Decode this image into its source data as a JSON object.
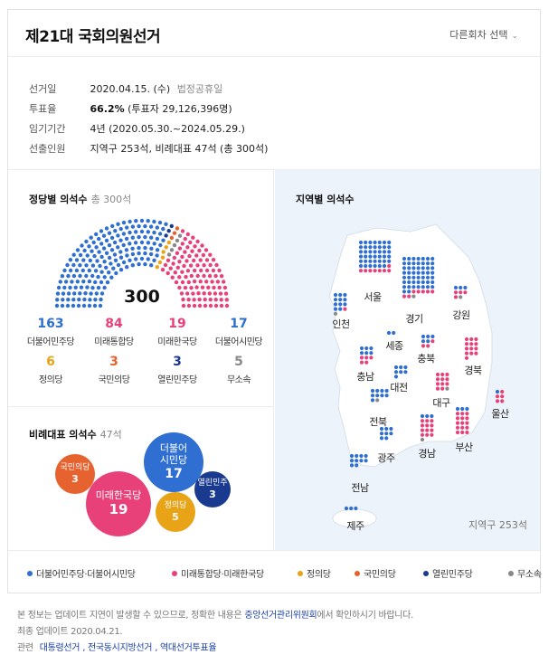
{
  "header": {
    "title": "제21대 국회의원선거",
    "selector_label": "다른회차 선택",
    "chevron_icon": "chevron-down-icon"
  },
  "info": {
    "rows": [
      {
        "key": "선거일",
        "value": "2020.04.15. (수)",
        "note": "법정공휴일"
      },
      {
        "key": "투표율",
        "value_bold": "66.2%",
        "value": "(투표자 29,126,396명)"
      },
      {
        "key": "임기기간",
        "value": "4년 (2020.05.30.~2024.05.29.)"
      },
      {
        "key": "선출인원",
        "value": "지역구 253석, 비례대표 47석 (총 300석)"
      }
    ]
  },
  "seats": {
    "title": "정당별 의석수",
    "subtitle": "총 300석",
    "total": "300",
    "parties": [
      {
        "count": "163",
        "label": "더불어민주당",
        "color": "#2f6fd1"
      },
      {
        "count": "84",
        "label": "미래통합당",
        "color": "#e8417a"
      },
      {
        "count": "19",
        "label": "미래한국당",
        "color": "#e8417a"
      },
      {
        "count": "17",
        "label": "더불어시민당",
        "color": "#2f6fd1"
      },
      {
        "count": "6",
        "label": "정의당",
        "color": "#e8a317"
      },
      {
        "count": "3",
        "label": "국민의당",
        "color": "#e6622e"
      },
      {
        "count": "3",
        "label": "열린민주당",
        "color": "#1a3a8f"
      },
      {
        "count": "5",
        "label": "무소속",
        "color": "#888888"
      }
    ]
  },
  "proportional": {
    "title": "비례대표 의석수",
    "subtitle": "47석",
    "bubbles": [
      {
        "name": "국민의당",
        "count": "3",
        "color": "#e6622e"
      },
      {
        "name": "미래한국당",
        "count": "19",
        "color": "#e8417a"
      },
      {
        "name": "더불어\n시민당",
        "count": "17",
        "color": "#2f6fd1"
      },
      {
        "name": "정의당",
        "count": "5",
        "color": "#e8a317"
      },
      {
        "name": "열린민주",
        "count": "3",
        "color": "#1a3a8f"
      }
    ]
  },
  "regions": {
    "title": "지역별 의석수",
    "footer": "지역구 253석",
    "items": [
      {
        "name": "서울",
        "blue": 41,
        "pink": 8,
        "gray": 0
      },
      {
        "name": "인천",
        "blue": 11,
        "pink": 1,
        "gray": 1
      },
      {
        "name": "경기",
        "blue": 51,
        "pink": 7,
        "gray": 1
      },
      {
        "name": "강원",
        "blue": 3,
        "pink": 4,
        "gray": 1
      },
      {
        "name": "세종",
        "blue": 2,
        "pink": 0,
        "gray": 0
      },
      {
        "name": "충북",
        "blue": 5,
        "pink": 3,
        "gray": 0
      },
      {
        "name": "충남",
        "blue": 6,
        "pink": 5,
        "gray": 0
      },
      {
        "name": "대전",
        "blue": 7,
        "pink": 0,
        "gray": 0
      },
      {
        "name": "경북",
        "blue": 0,
        "pink": 13,
        "gray": 0
      },
      {
        "name": "대구",
        "blue": 0,
        "pink": 11,
        "gray": 1
      },
      {
        "name": "전북",
        "blue": 9,
        "pink": 0,
        "gray": 1
      },
      {
        "name": "울산",
        "blue": 1,
        "pink": 5,
        "gray": 0
      },
      {
        "name": "광주",
        "blue": 8,
        "pink": 0,
        "gray": 0
      },
      {
        "name": "경남",
        "blue": 3,
        "pink": 12,
        "gray": 1
      },
      {
        "name": "부산",
        "blue": 3,
        "pink": 15,
        "gray": 0
      },
      {
        "name": "전남",
        "blue": 10,
        "pink": 0,
        "gray": 0
      },
      {
        "name": "제주",
        "blue": 3,
        "pink": 0,
        "gray": 0
      }
    ]
  },
  "legend": [
    {
      "label": "더불어민주당·더불어시민당",
      "color": "#2f6fd1"
    },
    {
      "label": "미래통합당·미래한국당",
      "color": "#e8417a"
    },
    {
      "label": "정의당",
      "color": "#e8a317"
    },
    {
      "label": "국민의당",
      "color": "#e6622e"
    },
    {
      "label": "열린민주당",
      "color": "#1a3a8f"
    },
    {
      "label": "무소속",
      "color": "#888888"
    }
  ],
  "footer": {
    "notice_pre": "본 정보는 업데이트 지연이 발생할 수 있으므로, 정확한 내용은",
    "notice_link": "중앙선거관리위원회",
    "notice_post": "에서 확인하시기 바랍니다.",
    "updated": "최종 업데이트 2020.04.21.",
    "related_label": "관련",
    "related_links": [
      "대통령선거",
      "전국동시지방선거",
      "역대선거투표율"
    ]
  },
  "colors": {
    "blue": "#2f6fd1",
    "pink": "#e8417a",
    "yellow": "#e8a317",
    "orange": "#e6622e",
    "navy": "#1a3a8f",
    "gray": "#888888"
  }
}
